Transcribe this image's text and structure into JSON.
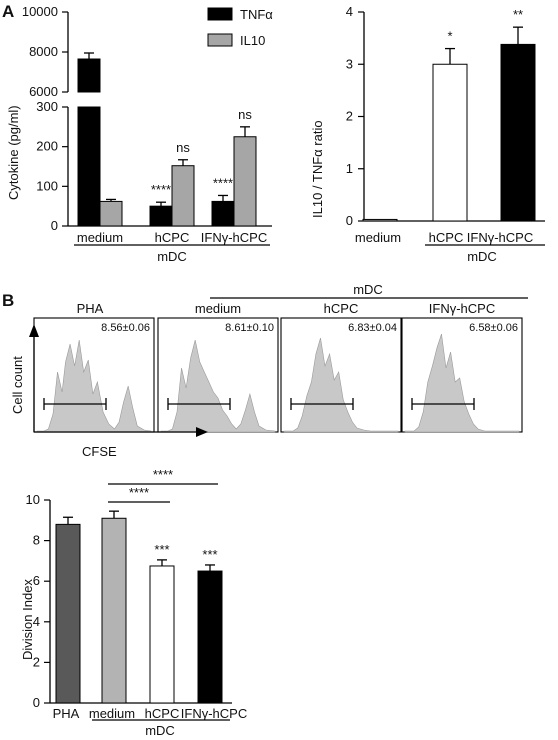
{
  "panel_labels": {
    "a": "A",
    "b": "B"
  },
  "colors": {
    "tnf": "#000000",
    "il10": "#a6a6a6",
    "hist_fill": "#c8c8c8",
    "pha": "#595959",
    "medium": "#b3b3b3",
    "hcpc": "#ffffff",
    "ifn": "#000000"
  },
  "chart_data": [
    {
      "type": "bar",
      "name": "cytokine",
      "ylabel": "Cytokine (pg/ml)",
      "categories": [
        "medium",
        "hCPC",
        "IFNγ-hCPC"
      ],
      "group_label": "mDC",
      "broken_axis": true,
      "ylim_lower": [
        0,
        300
      ],
      "ylim_upper": [
        6000,
        10000
      ],
      "yticks_lower": [
        "0",
        "100",
        "200",
        "300"
      ],
      "yticks_upper": [
        "6000",
        "8000",
        "10000"
      ],
      "legend": [
        "TNFα",
        "IL10"
      ],
      "series": [
        {
          "name": "TNFα",
          "values": [
            7650,
            50,
            62
          ],
          "errors": [
            300,
            10,
            15
          ]
        },
        {
          "name": "IL10",
          "values": [
            62,
            152,
            225
          ],
          "errors": [
            5,
            15,
            25
          ]
        }
      ],
      "annotations": [
        {
          "series": 0,
          "category": 1,
          "text": "****"
        },
        {
          "series": 0,
          "category": 2,
          "text": "****"
        },
        {
          "series": 1,
          "category": 1,
          "text": "ns"
        },
        {
          "series": 1,
          "category": 2,
          "text": "ns"
        }
      ]
    },
    {
      "type": "bar",
      "name": "ratio",
      "ylabel": "IL10 / TNFα ratio",
      "categories": [
        "medium",
        "hCPC",
        "IFNγ-hCPC"
      ],
      "group_label": "mDC",
      "ylim": [
        0,
        4
      ],
      "yticks": [
        "0",
        "1",
        "2",
        "3",
        "4"
      ],
      "values": [
        0.03,
        3.0,
        3.38
      ],
      "errors": [
        0.01,
        0.3,
        0.33
      ],
      "annotations": [
        "",
        "*",
        "**"
      ]
    },
    {
      "type": "histogram",
      "name": "cfse",
      "xlabel": "CFSE",
      "ylabel": "Cell count",
      "group_label": "mDC",
      "panels": [
        {
          "title": "PHA",
          "value": "8.56±0.06"
        },
        {
          "title": "medium",
          "value": "8.61±0.10"
        },
        {
          "title": "hCPC",
          "value": "6.83±0.04"
        },
        {
          "title": "IFNγ-hCPC",
          "value": "6.58±0.06"
        }
      ]
    },
    {
      "type": "bar",
      "name": "division",
      "ylabel": "Division Index",
      "categories": [
        "PHA",
        "medium",
        "hCPC",
        "IFNγ-hCPC"
      ],
      "group_label": "mDC",
      "ylim": [
        0,
        10
      ],
      "yticks": [
        "0",
        "2",
        "4",
        "6",
        "8",
        "10"
      ],
      "values": [
        8.8,
        9.1,
        6.75,
        6.5
      ],
      "errors": [
        0.35,
        0.35,
        0.3,
        0.3
      ],
      "annotations": [
        "",
        "",
        "***",
        "***"
      ],
      "brackets": [
        {
          "from": 1,
          "to": 2,
          "text": "****"
        },
        {
          "from": 1,
          "to": 3,
          "text": "****"
        }
      ]
    }
  ]
}
